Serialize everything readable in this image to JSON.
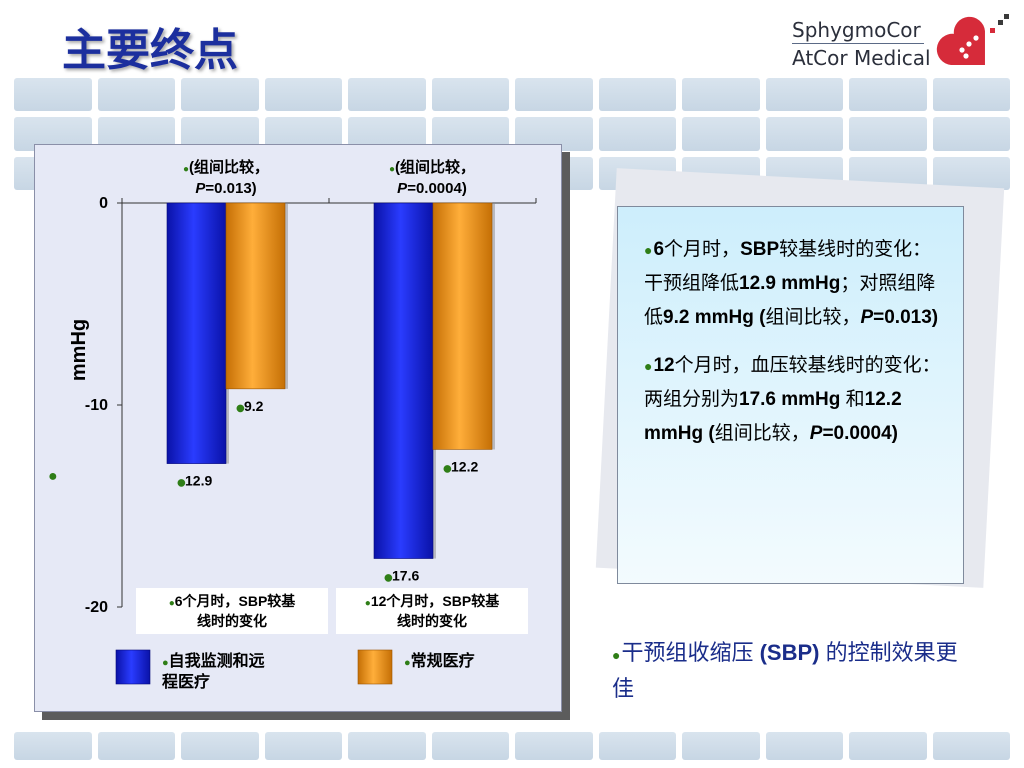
{
  "slide": {
    "title": "主要终点"
  },
  "logo": {
    "line1": "SphygmoCor",
    "line2": "AtCor Medical"
  },
  "chart_data": {
    "type": "bar",
    "categories": [
      "6个月时，SBP较基线时的变化",
      "12个月时，SBP较基线时的变化"
    ],
    "category_lines": [
      [
        "6个月时，SBP较基",
        "线时的变化"
      ],
      [
        "12个月时，SBP较基",
        "线时的变化"
      ]
    ],
    "series": [
      {
        "name": "自我监测和远程医疗",
        "values": [
          -12.9,
          -17.6
        ],
        "labels": [
          "12.9",
          "17.6"
        ],
        "color": "#1522d6"
      },
      {
        "name": "常规医疗",
        "values": [
          -9.2,
          -12.2
        ],
        "labels": [
          "9.2",
          "12.2"
        ],
        "color": "#f29512"
      }
    ],
    "legend_lines": [
      [
        "自我监测和远",
        "程医疗"
      ],
      [
        "常规医疗"
      ]
    ],
    "annotations": [
      {
        "line1": "(组间比较，",
        "p_label": "P",
        "p_value": "=0.013)"
      },
      {
        "line1": "(组间比较，",
        "p_label": "P",
        "p_value": "=0.0004)"
      }
    ],
    "ylabel": "mmHg",
    "ylim": [
      -20,
      0
    ],
    "yticks": [
      0,
      -10,
      -20
    ],
    "ytick_labels": [
      "0",
      "-10",
      "-20"
    ],
    "legend_position": "bottom",
    "grid": false
  },
  "callout": {
    "p1": {
      "s1": "6",
      "s2": "个月时，",
      "s3": "SBP",
      "s4": "较基线时的变化：干预组降低",
      "s5": "12.9 mmHg",
      "s6": "；对照组降低",
      "s7": "9.2 mmHg (",
      "s8": "组间比较，",
      "s9": "P",
      "s10": "=0.013)"
    },
    "p2": {
      "s1": "12",
      "s2": "个月时，血压较基线时的变化：两组分别为",
      "s3": "17.6 mmHg",
      "s4": " 和",
      "s5": "12.2 mmHg (",
      "s6": "组间比较，",
      "s7": "P",
      "s8": "=0.0004)"
    }
  },
  "conclusion": {
    "s1": "干预组收缩压 ",
    "s2": "(SBP)",
    "s3": " 的控制效果更佳"
  },
  "colors": {
    "title": "#1c2f9e",
    "bullet": "#2f7e17",
    "intervention": "#1522d6",
    "control": "#f29512"
  }
}
